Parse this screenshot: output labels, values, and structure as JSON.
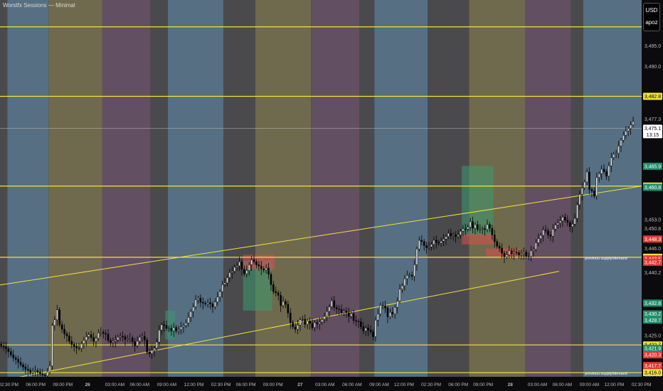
{
  "header": {
    "title": "Worstfx Sessions — Minimal"
  },
  "currency_box": {
    "currency": "USD",
    "unit": "apoz"
  },
  "colors": {
    "background": "#0b0b0d",
    "asia": "#566f82",
    "london": "#6f6a4e",
    "newyork": "#634f62",
    "gap": "#4a4a4c",
    "level": "#f5e23c",
    "bull": "#3d9970",
    "bear": "#e04a4a"
  },
  "chart_data": {
    "type": "candlestick",
    "title": "",
    "xlabel": "",
    "ylabel": "",
    "ylim": [
      3415.0,
      3503.0
    ],
    "x_range_index": [
      0,
      264
    ],
    "sessions": [
      {
        "session": "gap",
        "start": 0,
        "end": 3
      },
      {
        "session": "asia",
        "start": 3,
        "end": 20
      },
      {
        "session": "london",
        "start": 20,
        "end": 42
      },
      {
        "session": "newyork",
        "start": 42,
        "end": 62
      },
      {
        "session": "gap",
        "start": 62,
        "end": 69
      },
      {
        "session": "asia",
        "start": 69,
        "end": 92
      },
      {
        "session": "gap",
        "start": 92,
        "end": 105
      },
      {
        "session": "london",
        "start": 105,
        "end": 128
      },
      {
        "session": "newyork",
        "start": 128,
        "end": 148
      },
      {
        "session": "gap",
        "start": 148,
        "end": 154
      },
      {
        "session": "asia",
        "start": 154,
        "end": 176
      },
      {
        "session": "gap",
        "start": 176,
        "end": 193
      },
      {
        "session": "london",
        "start": 193,
        "end": 216
      },
      {
        "session": "newyork",
        "start": 216,
        "end": 235
      },
      {
        "session": "gap",
        "start": 235,
        "end": 240
      },
      {
        "session": "asia",
        "start": 240,
        "end": 264
      }
    ],
    "horizontal_levels": [
      {
        "price": 3499.6
      },
      {
        "price": 3482.8
      },
      {
        "price": 3461.1
      },
      {
        "price": 3443.9,
        "label": "previous supply/demand"
      },
      {
        "price": 3422.7
      },
      {
        "price": 3416.0,
        "label": "previous supply/demand"
      }
    ],
    "current_price_line": 3475.1,
    "trendlines": [
      {
        "from": [
          0,
          3437.2
        ],
        "to": [
          264,
          3461.1
        ]
      },
      {
        "from": [
          0,
          3414.0
        ],
        "to": [
          230,
          3440.5
        ]
      }
    ],
    "zones": [
      {
        "type": "bull",
        "x": [
          68,
          72
        ],
        "y": [
          3424.0,
          3431.0
        ]
      },
      {
        "type": "bull",
        "x": [
          100,
          112
        ],
        "y": [
          3431.0,
          3443.0
        ]
      },
      {
        "type": "bear",
        "x": [
          100,
          113
        ],
        "y": [
          3441.0,
          3444.5
        ]
      },
      {
        "type": "bull",
        "x": [
          190,
          203
        ],
        "y": [
          3449.0,
          3466.0
        ]
      },
      {
        "type": "bear",
        "x": [
          190,
          203
        ],
        "y": [
          3447.0,
          3449.5
        ]
      },
      {
        "type": "bear",
        "x": [
          200,
          214
        ],
        "y": [
          3444.0,
          3446.0
        ]
      }
    ],
    "closes": [
      3422.5,
      3422.2,
      3421.8,
      3421.1,
      3420.3,
      3419.6,
      3419.2,
      3418.5,
      3417.9,
      3417.4,
      3416.8,
      3416.6,
      3416.0,
      3416.3,
      3416.5,
      3416.1,
      3415.7,
      3415.4,
      3415.2,
      3416.2,
      3417.6,
      3427.4,
      3428.8,
      3431.2,
      3427.6,
      3426.5,
      3425.4,
      3424.9,
      3423.6,
      3422.8,
      3422.3,
      3422.0,
      3421.9,
      3423.0,
      3423.8,
      3424.7,
      3425.2,
      3424.5,
      3423.6,
      3424.3,
      3425.6,
      3425.8,
      3425.5,
      3425.3,
      3423.8,
      3423.3,
      3423.6,
      3423.9,
      3424.6,
      3424.8,
      3424.7,
      3424.0,
      3424.2,
      3424.4,
      3423.5,
      3422.5,
      3423.6,
      3424.6,
      3424.8,
      3423.9,
      3421.0,
      3420.6,
      3421.4,
      3421.9,
      3423.4,
      3426.3,
      3427.6,
      3427.4,
      3426.7,
      3426.7,
      3426.1,
      3426.9,
      3426.1,
      3426.4,
      3427.1,
      3427.4,
      3428.0,
      3429.4,
      3430.8,
      3431.9,
      3433.6,
      3434.0,
      3433.0,
      3432.8,
      3432.6,
      3432.9,
      3432.6,
      3431.9,
      3433.1,
      3434.3,
      3435.6,
      3437.3,
      3437.7,
      3439.0,
      3440.2,
      3440.5,
      3441.5,
      3441.8,
      3442.8,
      3441.0,
      3439.9,
      3440.7,
      3442.1,
      3443.3,
      3442.8,
      3442.1,
      3441.8,
      3441.1,
      3440.8,
      3441.3,
      3439.8,
      3437.3,
      3435.6,
      3435.3,
      3434.7,
      3432.2,
      3433.2,
      3432.5,
      3430.4,
      3428.1,
      3427.1,
      3426.5,
      3427.5,
      3428.8,
      3428.9,
      3427.7,
      3428.5,
      3427.9,
      3426.9,
      3428.1,
      3427.8,
      3428.2,
      3428.9,
      3429.6,
      3430.8,
      3431.9,
      3433.4,
      3431.8,
      3431.4,
      3431.3,
      3430.5,
      3430.9,
      3430.5,
      3429.6,
      3430.3,
      3428.6,
      3428.4,
      3428.3,
      3427.1,
      3426.1,
      3426.8,
      3426.3,
      3425.9,
      3424.7,
      3428.7,
      3430.2,
      3432.3,
      3432.2,
      3431.6,
      3429.5,
      3430.6,
      3430.2,
      3431.8,
      3433.3,
      3436.2,
      3437.0,
      3438.7,
      3439.5,
      3439.6,
      3439.3,
      3442.1,
      3445.9,
      3448.0,
      3447.7,
      3446.7,
      3446.2,
      3446.4,
      3447.0,
      3448.0,
      3447.5,
      3447.3,
      3447.8,
      3448.3,
      3448.9,
      3449.7,
      3449.1,
      3449.3,
      3448.9,
      3449.3,
      3450.2,
      3450.8,
      3450.7,
      3451.2,
      3452.5,
      3450.9,
      3451.8,
      3450.6,
      3450.7,
      3450.8,
      3450.6,
      3451.8,
      3450.9,
      3449.3,
      3447.7,
      3446.6,
      3446.1,
      3444.9,
      3444.0,
      3444.5,
      3445.5,
      3444.8,
      3445.1,
      3445.0,
      3444.5,
      3444.8,
      3445.1,
      3444.1,
      3444.1,
      3445.5,
      3445.8,
      3447.4,
      3448.4,
      3449.2,
      3450.5,
      3450.3,
      3449.3,
      3449.0,
      3450.7,
      3451.7,
      3452.2,
      3452.7,
      3453.6,
      3452.9,
      3452.3,
      3451.3,
      3451.9,
      3453.3,
      3456.6,
      3459.1,
      3460.7,
      3462.1,
      3464.5,
      3460.3,
      3459.9,
      3458.7,
      3463.2,
      3464.1,
      3465.2,
      3464.6,
      3463.5,
      3466.0,
      3468.0,
      3468.8,
      3469.0,
      3470.8,
      3472.2,
      3473.4,
      3474.4,
      3475.0,
      3475.9,
      3476.7
    ],
    "price_labels": [
      {
        "price": 3495.0,
        "text": "3,495.0",
        "style": "plain"
      },
      {
        "price": 3490.0,
        "text": "3,490.0",
        "style": "plain"
      },
      {
        "price": 3482.8,
        "text": "3,482.8",
        "style": "level"
      },
      {
        "price": 3477.3,
        "text": "3,477.3",
        "style": "plain"
      },
      {
        "price": 3475.1,
        "text": "3,475.1",
        "style": "current"
      },
      {
        "price": 3465.9,
        "text": "3,465.9",
        "style": "bull"
      },
      {
        "price": 3461.1,
        "text": "3,461.1",
        "style": "level"
      },
      {
        "price": 3460.8,
        "text": "3,460.8",
        "style": "bull"
      },
      {
        "price": 3453.0,
        "text": "3,453.0",
        "style": "plain"
      },
      {
        "price": 3450.8,
        "text": "3,450.8",
        "style": "plain"
      },
      {
        "price": 3448.3,
        "text": "3,448.3",
        "style": "bear"
      },
      {
        "price": 3446.0,
        "text": "3,446.0",
        "style": "plain"
      },
      {
        "price": 3443.9,
        "text": "3,443.9",
        "style": "level"
      },
      {
        "price": 3443.5,
        "text": "3,443.5",
        "style": "bear"
      },
      {
        "price": 3442.7,
        "text": "3,442.7",
        "style": "bear"
      },
      {
        "price": 3440.2,
        "text": "3,440.2",
        "style": "plain"
      },
      {
        "price": 3432.8,
        "text": "3,432.8",
        "style": "bull"
      },
      {
        "price": 3430.2,
        "text": "3,430.2",
        "style": "bull"
      },
      {
        "price": 3428.7,
        "text": "3,428.7",
        "style": "bull"
      },
      {
        "price": 3425.0,
        "text": "3,425.0",
        "style": "plain"
      },
      {
        "price": 3422.8,
        "text": "3,422.8",
        "style": "plain"
      },
      {
        "price": 3422.7,
        "text": "3,422.7",
        "style": "level"
      },
      {
        "price": 3421.9,
        "text": "3,421.9",
        "style": "bull"
      },
      {
        "price": 3420.3,
        "text": "3,420.3",
        "style": "bear"
      },
      {
        "price": 3417.7,
        "text": "3,417.7",
        "style": "bear"
      },
      {
        "price": 3416.0,
        "text": "3,416.0",
        "style": "level"
      },
      {
        "price": 3415.2,
        "text": "3,415.2",
        "style": "plain"
      }
    ],
    "countdown": "13:15",
    "time_labels": [
      {
        "i": 0,
        "text": "02:30 PM"
      },
      {
        "i": 12,
        "text": "06:00 PM"
      },
      {
        "i": 24,
        "text": "09:00 PM"
      },
      {
        "i": 35,
        "text": "26",
        "bold": true
      },
      {
        "i": 47,
        "text": "03:00 AM"
      },
      {
        "i": 58,
        "text": "06:00 AM"
      },
      {
        "i": 70,
        "text": "09:00 AM"
      },
      {
        "i": 82,
        "text": "12:00 PM"
      },
      {
        "i": 94,
        "text": "02:30 PM"
      },
      {
        "i": 105,
        "text": "06:00 PM"
      },
      {
        "i": 117,
        "text": "09:00 PM"
      },
      {
        "i": 129,
        "text": "27",
        "bold": true
      },
      {
        "i": 140,
        "text": "03:00 AM"
      },
      {
        "i": 152,
        "text": "06:00 AM"
      },
      {
        "i": 164,
        "text": "09:00 AM"
      },
      {
        "i": 175,
        "text": "12:00 PM"
      },
      {
        "i": 187,
        "text": "02:30 PM"
      },
      {
        "i": 199,
        "text": "06:00 PM"
      },
      {
        "i": 210,
        "text": "09:00 PM"
      },
      {
        "i": 222,
        "text": "28",
        "bold": true
      },
      {
        "i": 234,
        "text": "03:00 AM"
      },
      {
        "i": 245,
        "text": "06:00 AM"
      },
      {
        "i": 257,
        "text": "09:00 AM"
      },
      {
        "i": 268,
        "text": "12:00 PM"
      },
      {
        "i": 280,
        "text": "02:30 PM"
      }
    ]
  }
}
